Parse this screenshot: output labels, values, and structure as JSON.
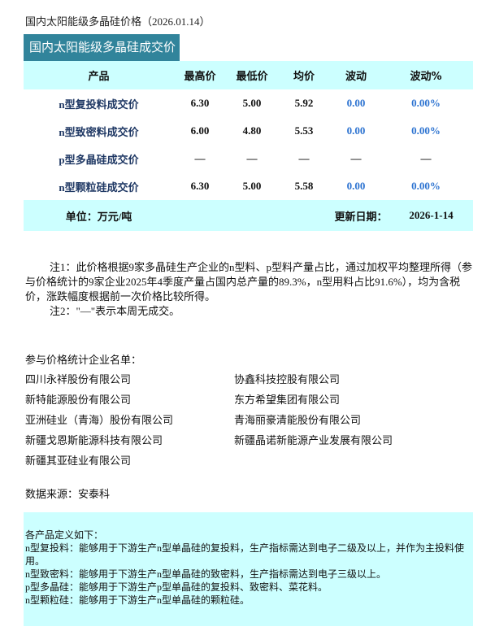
{
  "title": "国内太阳能级多晶硅价格（2026.01.14）",
  "table": {
    "caption": "国内太阳能级多晶硅成交价",
    "headers": [
      "产品",
      "最高价",
      "最低价",
      "均价",
      "波动",
      "波动%"
    ],
    "rows": [
      [
        "n型复投料成交价",
        "6.30",
        "5.00",
        "5.92",
        "0.00",
        "0.00%"
      ],
      [
        "n型致密料成交价",
        "6.00",
        "4.80",
        "5.53",
        "0.00",
        "0.00%"
      ],
      [
        "p型多晶硅成交价",
        "—",
        "—",
        "—",
        "—",
        "—"
      ],
      [
        "n型颗粒硅成交价",
        "6.30",
        "5.00",
        "5.58",
        "0.00",
        "0.00%"
      ]
    ],
    "unit": "单位：万元/吨",
    "update_label": "更新日期：",
    "update_date": "2026-1-14"
  },
  "notes": [
    "注1：此价格根据9家多晶硅生产企业的n型料、p型料产量占比，通过加权平均整理所得（参与价格统计的9家企业2025年4季度产量占国内总产量的89.3%，n型用料占比91.6%），均为含税价，涨跌幅度根据前一次价格比较所得。",
    "注2：\"—\"表示本周无成交。"
  ],
  "companies_label": "参与价格统计企业名单：",
  "companies": [
    "四川永祥股份有限公司",
    "协鑫科技控股有限公司",
    "新特能源股份有限公司",
    "东方希望集团有限公司",
    "亚洲硅业（青海）股份有限公司",
    "青海丽豪清能股份有限公司",
    "新疆戈恩斯能源科技有限公司",
    "新疆晶诺新能源产业发展有限公司",
    "新疆其亚硅业有限公司"
  ],
  "source": "数据来源：安泰科",
  "definitions": [
    "各产品定义如下：",
    "n型复投料：能够用于下游生产n型单晶硅的复投料，生产指标需达到电子二级及以上，并作为主投料使用。",
    "n型致密料：能够用于下游生产n型单晶硅的致密料，生产指标需达到电子三级以上。",
    "p型多晶硅：能够用于下游生产p型单晶硅的复投料、致密料、菜花料。",
    "n型颗粒硅：能够用于下游生产n型单晶硅的颗粒硅。"
  ],
  "colors": {
    "caption_bg": "#31849B",
    "band_bg": "#CCFFFF",
    "change_text": "#2E74D1",
    "product_text": "#1F3864"
  }
}
